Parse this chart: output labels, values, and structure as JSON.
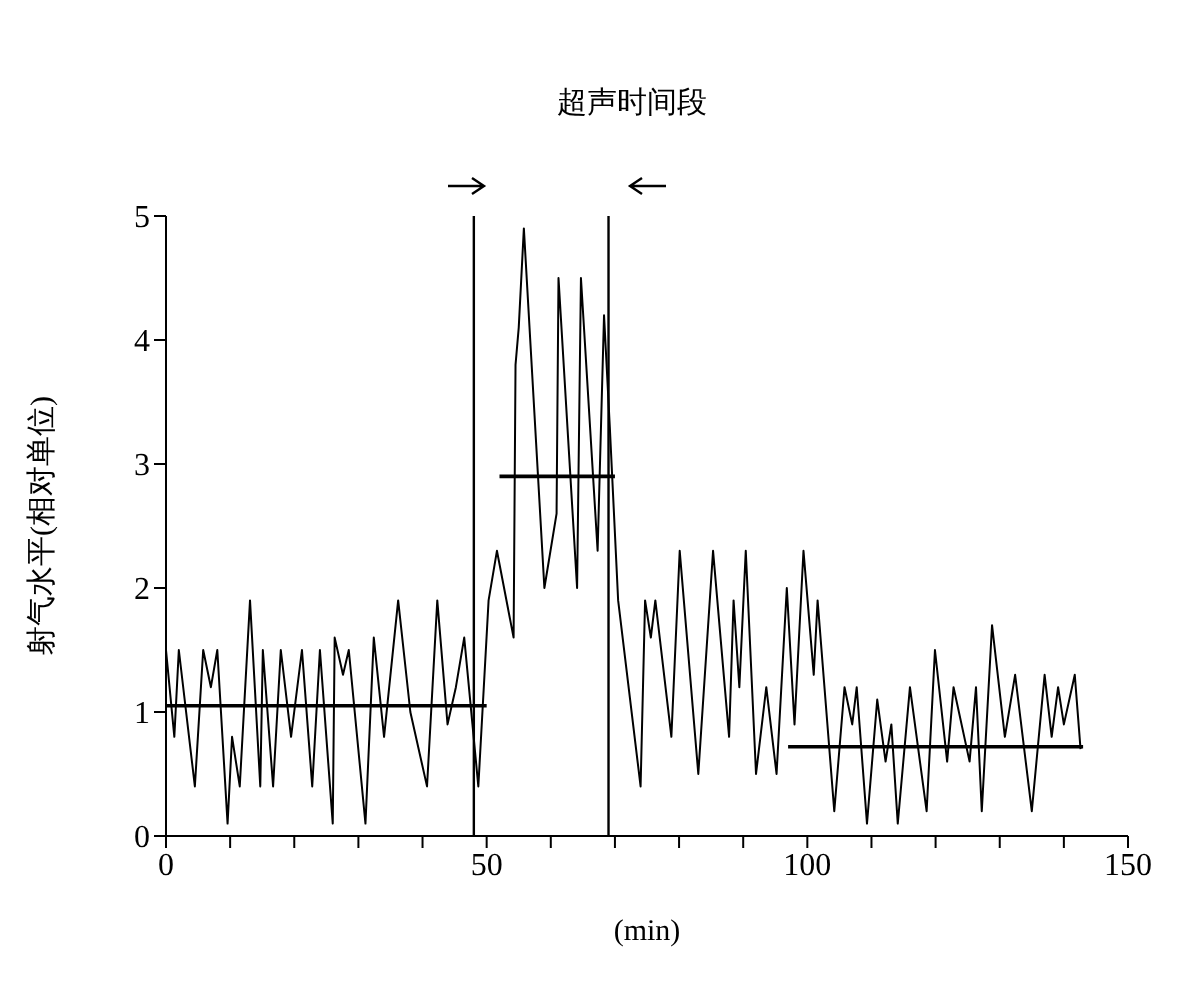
{
  "chart_data": {
    "type": "line",
    "xlabel": "(min)",
    "ylabel": "射气水平(相对单位)",
    "annotations": [
      "超声时间段"
    ],
    "xlim": [
      0,
      150
    ],
    "ylim": [
      0,
      5
    ],
    "xticks": [
      0,
      {
        "value": 10,
        "label": null
      },
      {
        "value": 20,
        "label": null
      },
      {
        "value": 30,
        "label": null
      },
      {
        "value": 40,
        "label": null
      },
      50,
      {
        "value": 60,
        "label": null
      },
      {
        "value": 70,
        "label": null
      },
      {
        "value": 80,
        "label": null
      },
      {
        "value": 90,
        "label": null
      },
      100,
      {
        "value": 110,
        "label": null
      },
      {
        "value": 120,
        "label": null
      },
      {
        "value": 130,
        "label": null
      },
      {
        "value": 140,
        "label": null
      },
      150
    ],
    "yticks": [
      0,
      1,
      2,
      3,
      4,
      5
    ],
    "marker": "none",
    "line_style": "solid",
    "ref_lines": [
      {
        "axis": "x",
        "value": 48,
        "color": "#000000"
      },
      {
        "axis": "x",
        "value": 69,
        "color": "#000000"
      }
    ],
    "series": [
      {
        "color": "#000000",
        "x": [
          0,
          1.3,
          2,
          4.5,
          5.8,
          7,
          8,
          9.6,
          10.3,
          11.5,
          13.1,
          14.7,
          15.1,
          16.7,
          17.9,
          19.5,
          21.2,
          22.8,
          24,
          26,
          26.3,
          27.6,
          28.5,
          31.1,
          32.4,
          34,
          36.2,
          38.1,
          40.7,
          42.3,
          43.9,
          45.2,
          46.5,
          48.7,
          50.3,
          51.6,
          54.2,
          54.5,
          55,
          55.8,
          59,
          60.9,
          61.2,
          64.1,
          64.7,
          67.3,
          68.3,
          69.2,
          70.5,
          74,
          74.7,
          75.6,
          76.3,
          78.8,
          80.1,
          83,
          85.3,
          87.8,
          88.5,
          89.4,
          90.4,
          92,
          93.6,
          95.2,
          96.8,
          98,
          99.4,
          101,
          101.6,
          104.2,
          105.8,
          107,
          107.7,
          109.3,
          110.9,
          112.2,
          113.1,
          114.1,
          116,
          118.6,
          119.9,
          121.8,
          122.8,
          125.3,
          126.3,
          127.2,
          128.8,
          130.8,
          132.4,
          135,
          137,
          138.1,
          139.1,
          140,
          141.7,
          142.6
        ],
        "values": [
          1.5,
          0.8,
          1.5,
          0.4,
          1.5,
          1.2,
          1.5,
          0.1,
          0.8,
          0.4,
          1.9,
          0.4,
          1.5,
          0.4,
          1.5,
          0.8,
          1.5,
          0.4,
          1.5,
          0.1,
          1.6,
          1.3,
          1.5,
          0.1,
          1.6,
          0.8,
          1.9,
          1.0,
          0.4,
          1.9,
          0.9,
          1.2,
          1.6,
          0.4,
          1.9,
          2.3,
          1.6,
          3.8,
          4.1,
          4.9,
          2.0,
          2.6,
          4.5,
          2.0,
          4.5,
          2.3,
          4.2,
          3.3,
          1.9,
          0.4,
          1.9,
          1.6,
          1.9,
          0.8,
          2.3,
          0.5,
          2.3,
          0.8,
          1.9,
          1.2,
          2.3,
          0.5,
          1.2,
          0.5,
          2.0,
          0.9,
          2.3,
          1.3,
          1.9,
          0.2,
          1.2,
          0.9,
          1.2,
          0.1,
          1.1,
          0.6,
          0.9,
          0.1,
          1.2,
          0.2,
          1.5,
          0.6,
          1.2,
          0.6,
          1.2,
          0.2,
          1.7,
          0.8,
          1.3,
          0.2,
          1.3,
          0.8,
          1.2,
          0.9,
          1.3,
          0.7
        ]
      },
      {
        "type": "line",
        "color": "#000000",
        "x": [
          0,
          50
        ],
        "values": [
          1.05,
          1.05
        ]
      },
      {
        "type": "line",
        "color": "#000000",
        "x": [
          52,
          70
        ],
        "values": [
          2.9,
          2.9
        ]
      },
      {
        "type": "line",
        "color": "#000000",
        "x": [
          97,
          143
        ],
        "values": [
          0.72,
          0.72
        ]
      }
    ]
  }
}
